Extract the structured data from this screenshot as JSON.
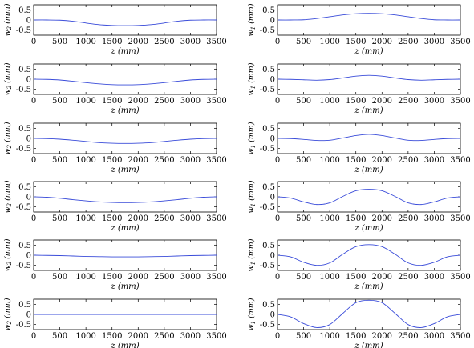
{
  "colors": {
    "line": "#3a4cd9",
    "axes": "#000000",
    "background": "#ffffff"
  },
  "chart_data": [
    {
      "type": "line",
      "column": "left",
      "row": 1,
      "xlabel": "z (mm)",
      "ylabel": "w_2 (mm)",
      "xlim": [
        0,
        3500
      ],
      "ylim": [
        -0.75,
        0.75
      ],
      "xticks": [
        "0",
        "500",
        "1000",
        "1500",
        "2000",
        "2500",
        "3000",
        "3500"
      ],
      "yticks": [
        "0.5",
        "0",
        "-0.5"
      ],
      "series": [
        {
          "x": [
            0,
            250,
            500,
            750,
            1000,
            1250,
            1500,
            1750,
            2000,
            2250,
            2500,
            2750,
            3000,
            3250,
            3500
          ],
          "y": [
            0,
            0,
            -0.01,
            -0.06,
            -0.15,
            -0.23,
            -0.27,
            -0.28,
            -0.27,
            -0.23,
            -0.15,
            -0.06,
            -0.01,
            0,
            0
          ]
        }
      ]
    },
    {
      "type": "line",
      "column": "right",
      "row": 1,
      "xlabel": "z (mm)",
      "ylabel": "w_1 (mm)",
      "xlim": [
        0,
        3500
      ],
      "ylim": [
        -0.75,
        0.75
      ],
      "xticks": [
        "0",
        "500",
        "1000",
        "1500",
        "2000",
        "2500",
        "3000",
        "3500"
      ],
      "yticks": [
        "0.5",
        "0",
        "-0.5"
      ],
      "series": [
        {
          "x": [
            0,
            250,
            500,
            750,
            1000,
            1250,
            1500,
            1750,
            2000,
            2250,
            2500,
            2750,
            3000,
            3250,
            3500
          ],
          "y": [
            0,
            0,
            0.01,
            0.07,
            0.16,
            0.25,
            0.31,
            0.33,
            0.31,
            0.25,
            0.16,
            0.07,
            0.01,
            0,
            0
          ]
        }
      ]
    },
    {
      "type": "line",
      "column": "left",
      "row": 2,
      "xlabel": "z (mm)",
      "ylabel": "w_2 (mm)",
      "xlim": [
        0,
        3500
      ],
      "ylim": [
        -0.75,
        0.75
      ],
      "xticks": [
        "0",
        "500",
        "1000",
        "1500",
        "2000",
        "2500",
        "3000",
        "3500"
      ],
      "yticks": [
        "0.5",
        "0",
        "-0.5"
      ],
      "series": [
        {
          "x": [
            0,
            250,
            500,
            750,
            1000,
            1250,
            1500,
            1750,
            2000,
            2250,
            2500,
            2750,
            3000,
            3250,
            3500
          ],
          "y": [
            0,
            -0.01,
            -0.04,
            -0.1,
            -0.17,
            -0.23,
            -0.27,
            -0.28,
            -0.27,
            -0.23,
            -0.17,
            -0.1,
            -0.04,
            -0.01,
            0
          ]
        }
      ]
    },
    {
      "type": "line",
      "column": "right",
      "row": 2,
      "xlabel": "z (mm)",
      "ylabel": "w_1 (mm)",
      "xlim": [
        0,
        3500
      ],
      "ylim": [
        -0.75,
        0.75
      ],
      "xticks": [
        "0",
        "500",
        "1000",
        "1500",
        "2000",
        "2500",
        "3000",
        "3500"
      ],
      "yticks": [
        "0.5",
        "0",
        "-0.5"
      ],
      "series": [
        {
          "x": [
            0,
            250,
            500,
            750,
            1000,
            1250,
            1500,
            1750,
            2000,
            2250,
            2500,
            2750,
            3000,
            3250,
            3500
          ],
          "y": [
            0,
            -0.01,
            -0.03,
            -0.05,
            -0.02,
            0.06,
            0.15,
            0.19,
            0.15,
            0.06,
            -0.02,
            -0.05,
            -0.03,
            -0.01,
            0
          ]
        }
      ]
    },
    {
      "type": "line",
      "column": "left",
      "row": 3,
      "xlabel": "z (mm)",
      "ylabel": "w_2 (mm)",
      "xlim": [
        0,
        3500
      ],
      "ylim": [
        -0.75,
        0.75
      ],
      "xticks": [
        "0",
        "500",
        "1000",
        "1500",
        "2000",
        "2500",
        "3000",
        "3500"
      ],
      "yticks": [
        "0.5",
        "0",
        "-0.5"
      ],
      "series": [
        {
          "x": [
            0,
            250,
            500,
            750,
            1000,
            1250,
            1500,
            1750,
            2000,
            2250,
            2500,
            2750,
            3000,
            3250,
            3500
          ],
          "y": [
            0,
            -0.01,
            -0.04,
            -0.09,
            -0.15,
            -0.21,
            -0.24,
            -0.25,
            -0.24,
            -0.21,
            -0.15,
            -0.09,
            -0.04,
            -0.01,
            0
          ]
        }
      ]
    },
    {
      "type": "line",
      "column": "right",
      "row": 3,
      "xlabel": "z (mm)",
      "ylabel": "w_1 (mm)",
      "xlim": [
        0,
        3500
      ],
      "ylim": [
        -0.75,
        0.75
      ],
      "xticks": [
        "0",
        "500",
        "1000",
        "1500",
        "2000",
        "2500",
        "3000",
        "3500"
      ],
      "yticks": [
        "0.5",
        "0",
        "-0.5"
      ],
      "series": [
        {
          "x": [
            0,
            250,
            500,
            750,
            1000,
            1250,
            1500,
            1750,
            2000,
            2250,
            2500,
            2750,
            3000,
            3250,
            3500
          ],
          "y": [
            0,
            -0.01,
            -0.05,
            -0.1,
            -0.09,
            0.02,
            0.14,
            0.2,
            0.14,
            0.02,
            -0.09,
            -0.1,
            -0.05,
            -0.01,
            0
          ]
        }
      ]
    },
    {
      "type": "line",
      "column": "left",
      "row": 4,
      "xlabel": "z (mm)",
      "ylabel": "w_2 (mm)",
      "xlim": [
        0,
        3500
      ],
      "ylim": [
        -0.75,
        0.75
      ],
      "xticks": [
        "0",
        "500",
        "1000",
        "1500",
        "2000",
        "2500",
        "3000",
        "3500"
      ],
      "yticks": [
        "0.5",
        "0",
        "-0.5"
      ],
      "series": [
        {
          "x": [
            0,
            250,
            500,
            750,
            1000,
            1250,
            1500,
            1750,
            2000,
            2250,
            2500,
            2750,
            3000,
            3250,
            3500
          ],
          "y": [
            0,
            -0.02,
            -0.07,
            -0.14,
            -0.2,
            -0.25,
            -0.28,
            -0.29,
            -0.28,
            -0.25,
            -0.2,
            -0.14,
            -0.07,
            -0.02,
            0
          ]
        }
      ]
    },
    {
      "type": "line",
      "column": "right",
      "row": 4,
      "xlabel": "z (mm)",
      "ylabel": "w_1 (mm)",
      "xlim": [
        0,
        3500
      ],
      "ylim": [
        -0.75,
        0.75
      ],
      "xticks": [
        "0",
        "500",
        "1000",
        "1500",
        "2000",
        "2500",
        "3000",
        "3500"
      ],
      "yticks": [
        "0.5",
        "0",
        "-0.5"
      ],
      "series": [
        {
          "x": [
            0,
            250,
            500,
            750,
            1000,
            1250,
            1500,
            1750,
            2000,
            2250,
            2500,
            2750,
            3000,
            3250,
            3500
          ],
          "y": [
            0,
            -0.06,
            -0.25,
            -0.38,
            -0.3,
            0.02,
            0.3,
            0.37,
            0.3,
            0.02,
            -0.3,
            -0.38,
            -0.25,
            -0.06,
            0
          ]
        }
      ]
    },
    {
      "type": "line",
      "column": "left",
      "row": 5,
      "xlabel": "z (mm)",
      "ylabel": "w_2 (mm)",
      "xlim": [
        0,
        3500
      ],
      "ylim": [
        -0.75,
        0.75
      ],
      "xticks": [
        "0",
        "500",
        "1000",
        "1500",
        "2000",
        "2500",
        "3000",
        "3500"
      ],
      "yticks": [
        "0.5",
        "0",
        "-0.5"
      ],
      "series": [
        {
          "x": [
            0,
            250,
            500,
            750,
            1000,
            1250,
            1500,
            1750,
            2000,
            2250,
            2500,
            2750,
            3000,
            3250,
            3500
          ],
          "y": [
            0,
            -0.01,
            -0.02,
            -0.04,
            -0.06,
            -0.07,
            -0.08,
            -0.08,
            -0.08,
            -0.07,
            -0.06,
            -0.04,
            -0.02,
            -0.01,
            0
          ]
        }
      ]
    },
    {
      "type": "line",
      "column": "right",
      "row": 5,
      "xlabel": "z (mm)",
      "ylabel": "w_1 (mm)",
      "xlim": [
        0,
        3500
      ],
      "ylim": [
        -0.75,
        0.75
      ],
      "xticks": [
        "0",
        "500",
        "1000",
        "1500",
        "2000",
        "2500",
        "3000",
        "3500"
      ],
      "yticks": [
        "0.5",
        "0",
        "-0.5"
      ],
      "series": [
        {
          "x": [
            0,
            250,
            500,
            750,
            1000,
            1250,
            1500,
            1750,
            2000,
            2250,
            2500,
            2750,
            3000,
            3250,
            3500
          ],
          "y": [
            0,
            -0.08,
            -0.35,
            -0.5,
            -0.38,
            0.05,
            0.42,
            0.52,
            0.42,
            0.05,
            -0.38,
            -0.5,
            -0.35,
            -0.08,
            0
          ]
        }
      ]
    },
    {
      "type": "line",
      "column": "left",
      "row": 6,
      "xlabel": "z (mm)",
      "ylabel": "w_2 (mm)",
      "xlim": [
        0,
        3500
      ],
      "ylim": [
        -0.75,
        0.75
      ],
      "xticks": [
        "0",
        "500",
        "1000",
        "1500",
        "2000",
        "2500",
        "3000",
        "3500"
      ],
      "yticks": [
        "0.5",
        "0",
        "-0.5"
      ],
      "series": [
        {
          "x": [
            0,
            3500
          ],
          "y": [
            0,
            0
          ]
        }
      ]
    },
    {
      "type": "line",
      "column": "right",
      "row": 6,
      "xlabel": "z (mm)",
      "ylabel": "w_1 (mm)",
      "xlim": [
        0,
        3500
      ],
      "ylim": [
        -0.75,
        0.75
      ],
      "xticks": [
        "0",
        "500",
        "1000",
        "1500",
        "2000",
        "2500",
        "3000",
        "3500"
      ],
      "yticks": [
        "0.5",
        "0",
        "-0.5"
      ],
      "series": [
        {
          "x": [
            0,
            250,
            500,
            750,
            1000,
            1250,
            1500,
            1750,
            2000,
            2250,
            2500,
            2750,
            3000,
            3250,
            3500
          ],
          "y": [
            0,
            -0.12,
            -0.45,
            -0.65,
            -0.5,
            0.05,
            0.58,
            0.7,
            0.58,
            0.05,
            -0.5,
            -0.65,
            -0.45,
            -0.12,
            0
          ]
        }
      ]
    }
  ]
}
